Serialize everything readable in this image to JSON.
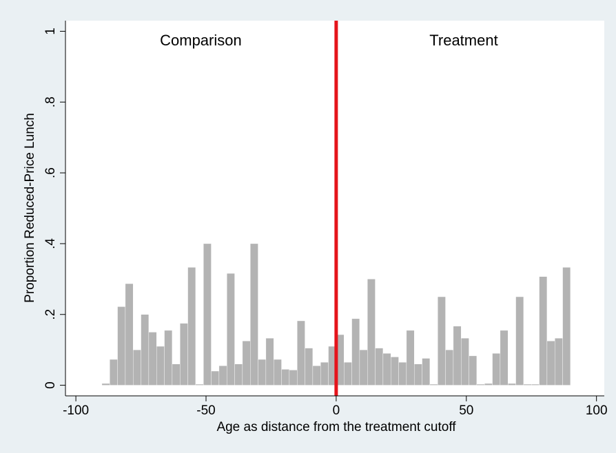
{
  "chart_data": {
    "type": "histogram",
    "x_label": "Age as distance from the treatment cutoff",
    "y_label": "Proportion Reduced-Price Lunch",
    "annotations": [
      "Comparison",
      "Treatment"
    ],
    "bins": [
      -90,
      -87,
      -84,
      -81,
      -78,
      -75,
      -72,
      -69,
      -66,
      -63,
      -60,
      -57,
      -54,
      -51,
      -48,
      -45,
      -42,
      -39,
      -36,
      -33,
      -30,
      -27,
      -24,
      -21,
      -18,
      -15,
      -12,
      -9,
      -6,
      -3,
      0,
      3,
      6,
      9,
      12,
      15,
      18,
      21,
      24,
      27,
      30,
      33,
      36,
      39,
      42,
      45,
      48,
      51,
      54,
      57,
      60,
      63,
      66,
      69,
      72,
      75,
      78,
      81,
      84,
      87,
      90
    ],
    "values": [
      0.005,
      0.073,
      0.222,
      0.287,
      0.1,
      0.2,
      0.15,
      0.11,
      0.155,
      0.06,
      0.175,
      0.333,
      0.003,
      0.4,
      0.04,
      0.055,
      0.316,
      0.06,
      0.125,
      0.4,
      0.073,
      0.133,
      0.073,
      0.045,
      0.043,
      0.182,
      0.105,
      0.055,
      0.065,
      0.11,
      0.143,
      0.065,
      0.188,
      0.1,
      0.3,
      0.105,
      0.09,
      0.08,
      0.065,
      0.155,
      0.06,
      0.076,
      0.003,
      0.25,
      0.1,
      0.167,
      0.133,
      0.083,
      0.003,
      0.005,
      0.09,
      0.155,
      0.005,
      0.25,
      0.003,
      0.003,
      0.307,
      0.125,
      0.133,
      0.333
    ],
    "color": "#b3b3b3",
    "cutoff": 0,
    "cutoff_color": "#e5141b",
    "xlim": [
      -104,
      103
    ],
    "xticks": [
      -100,
      -50,
      0,
      50,
      100
    ],
    "ylim": [
      -0.03,
      1.03
    ],
    "yticks": [
      0,
      {
        "value": 0.2,
        "label": ".2"
      },
      {
        "value": 0.4,
        "label": ".4"
      },
      {
        "value": 0.6,
        "label": ".6"
      },
      {
        "value": 0.8,
        "label": ".8"
      },
      1
    ]
  }
}
